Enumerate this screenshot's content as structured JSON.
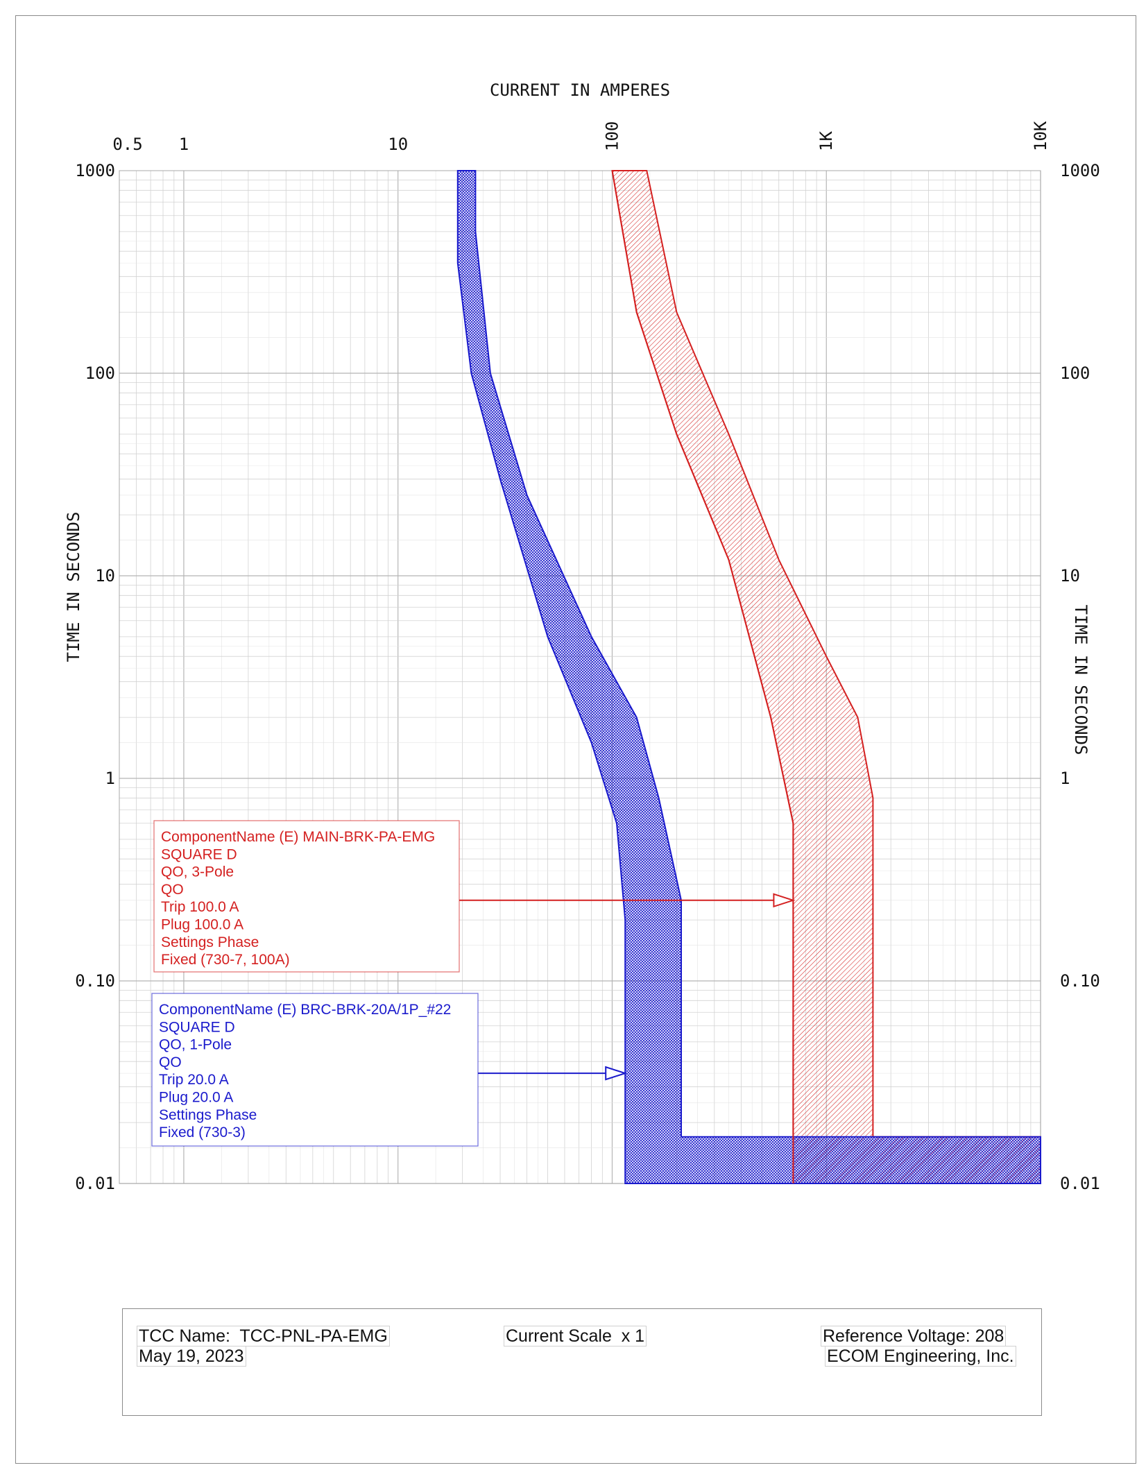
{
  "chart_data": {
    "type": "tcc-log-log",
    "xlabel": "CURRENT IN AMPERES",
    "ylabel_left": "TIME IN SECONDS",
    "ylabel_right": "TIME IN SECONDS",
    "x_scale": "log",
    "y_scale": "log",
    "xlim": [
      0.5,
      10000
    ],
    "ylim": [
      0.01,
      1000
    ],
    "x_ticks": [
      {
        "value": 0.5,
        "label": "0.5",
        "rotated": false
      },
      {
        "value": 1,
        "label": "1",
        "rotated": false
      },
      {
        "value": 10,
        "label": "10",
        "rotated": false
      },
      {
        "value": 100,
        "label": "100",
        "rotated": true
      },
      {
        "value": 1000,
        "label": "1K",
        "rotated": true
      },
      {
        "value": 10000,
        "label": "10K",
        "rotated": true
      }
    ],
    "y_ticks": [
      {
        "value": 1000,
        "label": "1000"
      },
      {
        "value": 100,
        "label": "100"
      },
      {
        "value": 10,
        "label": "10"
      },
      {
        "value": 1,
        "label": "1"
      },
      {
        "value": 0.1,
        "label": "0.10"
      },
      {
        "value": 0.01,
        "label": "0.01"
      }
    ],
    "grid": true,
    "series": [
      {
        "color": "#d42020",
        "hatch": "diagonal",
        "left_curve": [
          [
            100,
            1000
          ],
          [
            130,
            200
          ],
          [
            200,
            50
          ],
          [
            350,
            12
          ],
          [
            550,
            2
          ],
          [
            700,
            0.6
          ],
          [
            700,
            0.01
          ]
        ],
        "right_curve": [
          [
            145,
            1000
          ],
          [
            200,
            200
          ],
          [
            350,
            50
          ],
          [
            600,
            12
          ],
          [
            1000,
            4
          ],
          [
            1400,
            2
          ],
          [
            1650,
            0.8
          ],
          [
            1650,
            0.017
          ],
          [
            10000,
            0.017
          ],
          [
            10000,
            0.01
          ]
        ],
        "annotation": {
          "lines": [
            "ComponentName (E) MAIN-BRK-PA-EMG",
            "SQUARE D",
            "QO, 3-Pole",
            "QO",
            "Trip 100.0 A",
            "Plug 100.0 A",
            "Settings Phase",
            "   Fixed (730-7, 100A)"
          ],
          "arrow_to": [
            700,
            0.25
          ]
        }
      },
      {
        "color": "#1a1acc",
        "hatch": "crosshatch",
        "left_curve": [
          [
            19,
            1000
          ],
          [
            19,
            350
          ],
          [
            22,
            100
          ],
          [
            30,
            30
          ],
          [
            50,
            5
          ],
          [
            80,
            1.5
          ],
          [
            105,
            0.6
          ],
          [
            115,
            0.2
          ],
          [
            115,
            0.01
          ]
        ],
        "right_curve": [
          [
            23,
            1000
          ],
          [
            23,
            500
          ],
          [
            27,
            100
          ],
          [
            40,
            25
          ],
          [
            80,
            5
          ],
          [
            130,
            2
          ],
          [
            165,
            0.8
          ],
          [
            210,
            0.25
          ],
          [
            210,
            0.017
          ],
          [
            10000,
            0.017
          ],
          [
            10000,
            0.01
          ]
        ],
        "annotation": {
          "lines": [
            "ComponentName (E) BRC-BRK-20A/1P_#22",
            "SQUARE D",
            "QO, 1-Pole",
            "QO",
            "Trip 20.0 A",
            "Plug 20.0 A",
            "Settings Phase",
            "   Fixed (730-3)"
          ],
          "arrow_to": [
            115,
            0.035
          ]
        }
      }
    ]
  },
  "footer": {
    "tcc_name": "TCC Name:  TCC-PNL-PA-EMG",
    "date": "May 19, 2023",
    "current_scale": "Current Scale  x 1",
    "reference_voltage": "Reference Voltage: 208",
    "company": "ECOM Engineering, Inc."
  }
}
